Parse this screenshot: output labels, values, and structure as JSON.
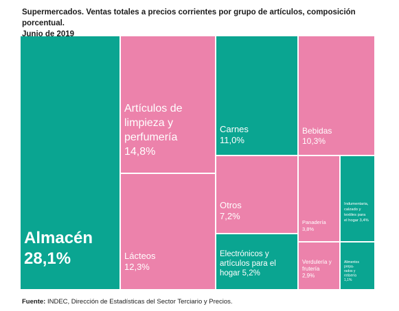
{
  "title": "Supermercados. Ventas totales a precios corrientes por grupo de artículos, composición porcentual.",
  "subtitle": "Junio de 2019",
  "source_label": "Fuente:",
  "source_text": "INDEC, Dirección de Estadísticas del Sector Terciario y Precios.",
  "colors": {
    "teal": "#0aa591",
    "pink": "#ec82ab",
    "text": "#ffffff"
  },
  "chart_data": {
    "type": "treemap",
    "items": [
      {
        "name": "Almacén",
        "value": "28,1%",
        "color": "teal"
      },
      {
        "name": "Artículos de limpieza y perfumería",
        "value": "14,8%",
        "color": "pink"
      },
      {
        "name": "Lácteos",
        "value": "12,3%",
        "color": "pink"
      },
      {
        "name": "Carnes",
        "value": "11,0%",
        "color": "teal"
      },
      {
        "name": "Otros",
        "value": "7,2%",
        "color": "pink"
      },
      {
        "name": "Electrónicos y artículos para el hogar",
        "value": "5,2%",
        "color": "teal"
      },
      {
        "name": "Bebidas",
        "value": "10,3%",
        "color": "pink"
      },
      {
        "name": "Panadería",
        "value": "3,8%",
        "color": "pink"
      },
      {
        "name": "Verdulería y frutería",
        "value": "2,9%",
        "color": "pink"
      },
      {
        "name": "Indumentaria, calzado y textiles para el hogar",
        "value": "3,4%",
        "color": "teal"
      },
      {
        "name": "Alimentos preparados y rotisería",
        "value": "1,1%",
        "color": "teal"
      }
    ]
  }
}
